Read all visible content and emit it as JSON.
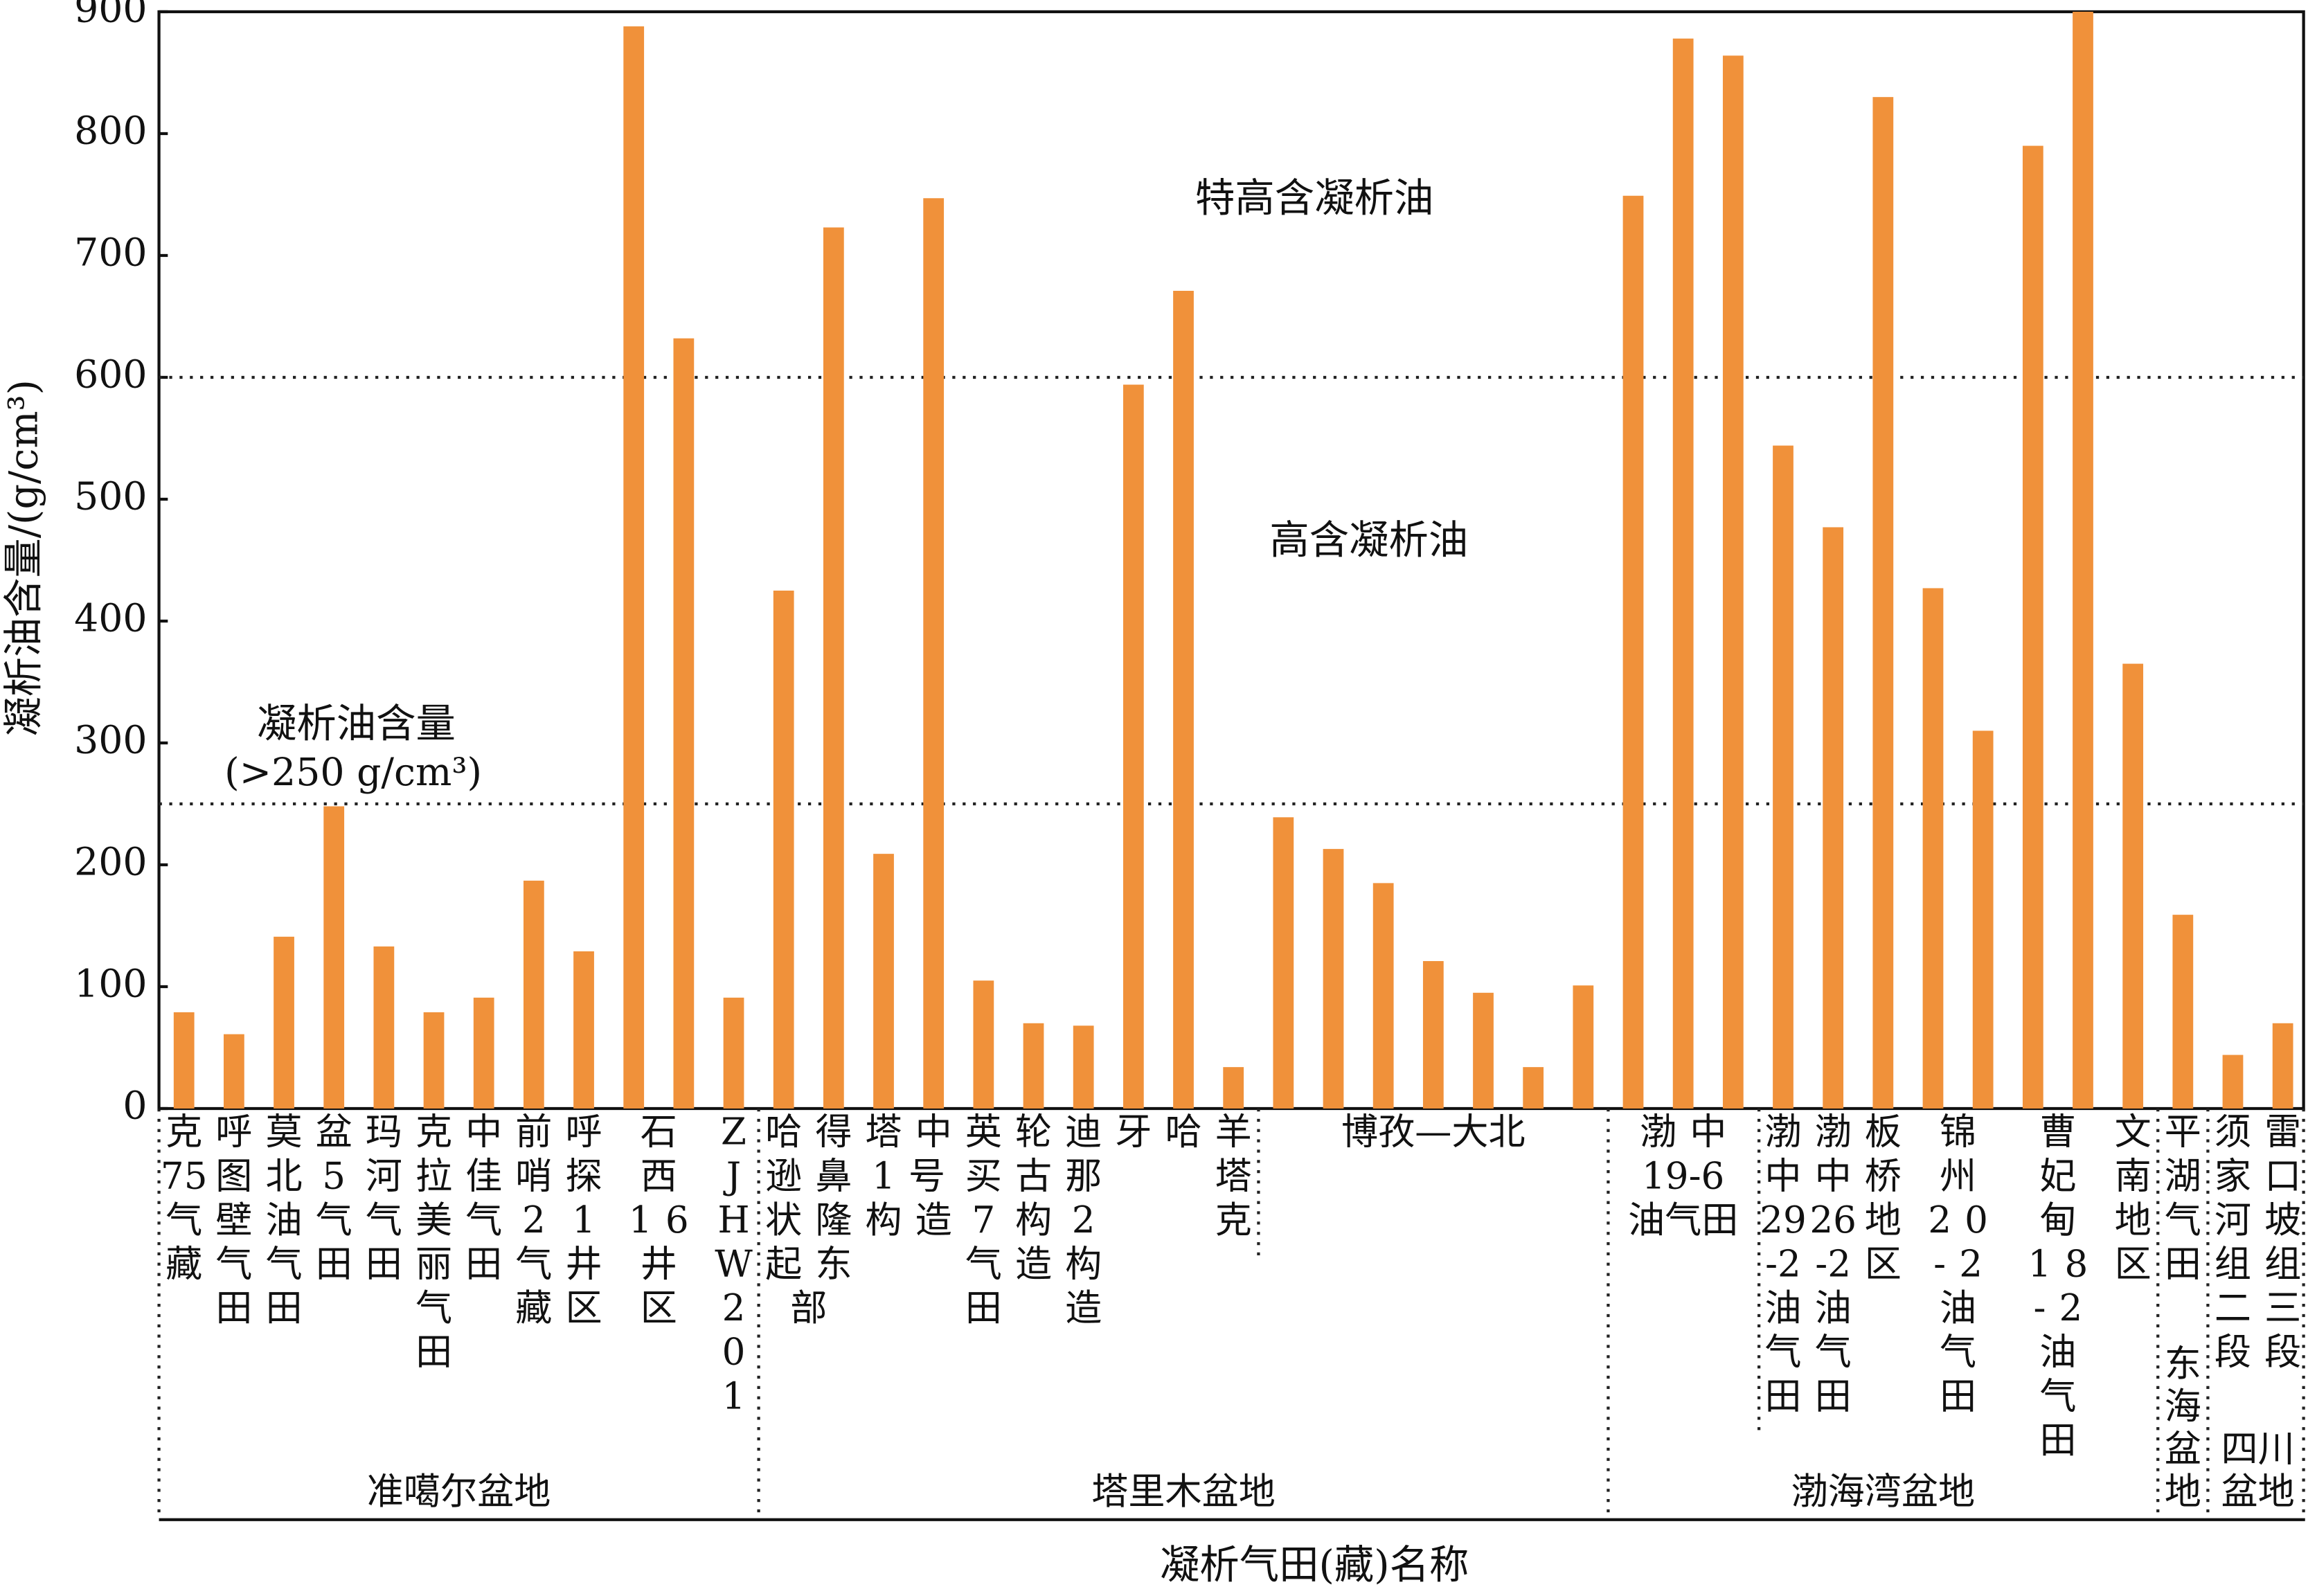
{
  "chart_data": {
    "type": "bar",
    "y_label": "凝析油含量/(g/cm³)",
    "x_label": "凝析气田(藏)名称",
    "color": "#f0913a",
    "ylim": [
      0,
      900
    ],
    "yticks": [
      0,
      100,
      200,
      300,
      400,
      500,
      600,
      700,
      800,
      900
    ],
    "reference_lines": [
      250,
      600
    ],
    "annotations": [
      "特高含凝析油",
      "高含凝析油",
      "凝析油含量",
      "(>250 g/cm³)"
    ],
    "categories": [
      [
        "克",
        "75",
        "气",
        "藏"
      ],
      [
        "呼",
        "图",
        "壁",
        "气",
        "田"
      ],
      [
        "莫",
        "北",
        "油",
        "气",
        "田"
      ],
      [
        "盆",
        "5",
        "气",
        "田"
      ],
      [
        "玛",
        "河",
        "气",
        "田"
      ],
      [
        "克",
        "拉",
        "美",
        "丽",
        "气",
        "田"
      ],
      [
        "中",
        "佳",
        "气",
        "田"
      ],
      [
        "前",
        "哨",
        "2",
        "气",
        "藏"
      ],
      [
        "呼",
        "探",
        "1",
        "井",
        "区"
      ],
      [
        "石",
        "西",
        "16",
        "井",
        "区"
      ],
      null,
      [
        "Z",
        "J",
        "H",
        "W",
        "2",
        "0",
        "1"
      ],
      [
        "哈得",
        "逊鼻",
        "状隆",
        "起东",
        "部"
      ],
      null,
      [
        "塔中",
        "1号",
        "构造"
      ],
      null,
      [
        "英",
        "买",
        "7",
        "气",
        "田"
      ],
      [
        "轮",
        "古",
        "构",
        "造"
      ],
      [
        "迪",
        "那",
        "2",
        "构",
        "造"
      ],
      [
        "牙哈"
      ],
      null,
      [
        "羊",
        "塔",
        "克"
      ],
      [
        "博孜—大北"
      ],
      null,
      null,
      null,
      null,
      null,
      null,
      [
        "渤中",
        "19-6",
        "油气田"
      ],
      null,
      null,
      [
        "渤",
        "中",
        "29",
        "-2",
        "油",
        "气",
        "田"
      ],
      [
        "渤",
        "中",
        "26",
        "-2",
        "油",
        "气",
        "田"
      ],
      [
        "板",
        "桥",
        "地",
        "区"
      ],
      [
        "锦",
        "州",
        "20",
        "-2",
        "油",
        "气",
        "田"
      ],
      null,
      [
        "曹",
        "妃",
        "甸",
        "18",
        "-2",
        "油",
        "气",
        "田"
      ],
      null,
      [
        "文",
        "南",
        "地",
        "区"
      ],
      [
        "平",
        "湖",
        "气",
        "田"
      ],
      [
        "须",
        "家",
        "河",
        "组",
        "二",
        "段"
      ],
      [
        "雷",
        "口",
        "坡",
        "组",
        "三",
        "段"
      ]
    ],
    "basins": [
      [
        "准噶尔盆地"
      ],
      null,
      null,
      null,
      null,
      null,
      null,
      null,
      null,
      null,
      null,
      null,
      [
        "塔里木盆地"
      ],
      null,
      null,
      null,
      null,
      null,
      null,
      null,
      null,
      null,
      null,
      null,
      null,
      null,
      null,
      null,
      null,
      [
        "渤海湾盆地"
      ],
      null,
      null,
      null,
      null,
      null,
      null,
      null,
      null,
      null,
      null,
      [
        "东",
        "海",
        "盆",
        "地"
      ],
      [
        "四川",
        "盆地"
      ],
      null
    ],
    "values": [
      79,
      61,
      141,
      248,
      133,
      79,
      91,
      187,
      129,
      888,
      632,
      91,
      425,
      723,
      209,
      747,
      105,
      70,
      68,
      594,
      671,
      34,
      239,
      213,
      185,
      121,
      95,
      34,
      101,
      749,
      878,
      864,
      544,
      477,
      830,
      427,
      310,
      790,
      900,
      365,
      159,
      44,
      70
    ]
  }
}
